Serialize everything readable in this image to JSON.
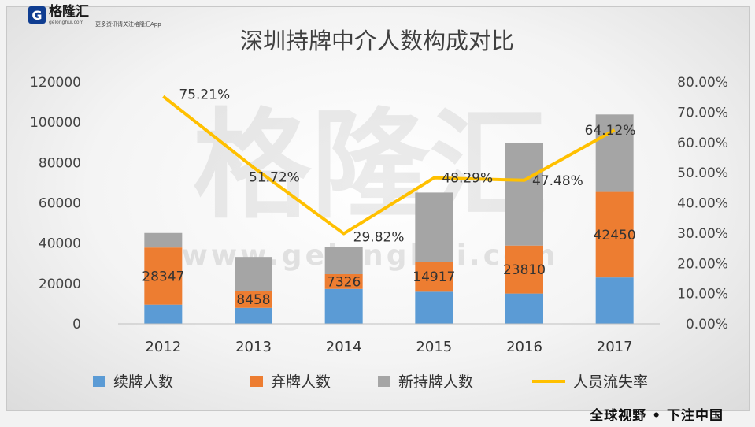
{
  "logo": {
    "mark": "G",
    "name": "格隆汇",
    "url": "gelonghui.com",
    "slogan": "更多资讯请关注格隆汇App"
  },
  "watermark": {
    "text": "格隆汇",
    "url": "www.gelonghui.com"
  },
  "footer_slogan": "全球视野 • 下注中国",
  "colors": {
    "renew": "#5b9bd5",
    "abandon": "#ed7d31",
    "new": "#a5a5a5",
    "rate": "#ffc000"
  },
  "chart_data": {
    "type": "bar",
    "stacked": true,
    "title": "深圳持牌中介人数构成对比",
    "categories": [
      "2012",
      "2013",
      "2014",
      "2015",
      "2016",
      "2017"
    ],
    "ylim": [
      0,
      120000
    ],
    "yticks": [
      "120000",
      "100000",
      "80000",
      "60000",
      "40000",
      "20000",
      "0"
    ],
    "y2lim": [
      0,
      0.8
    ],
    "y2ticks": [
      "80.00%",
      "70.00%",
      "60.00%",
      "50.00%",
      "40.00%",
      "30.00%",
      "20.00%",
      "10.00%",
      "0.00%"
    ],
    "series": [
      {
        "name": "续牌人数",
        "values": [
          9500,
          7900,
          17300,
          15900,
          15000,
          23000
        ]
      },
      {
        "name": "弃牌人数",
        "values": [
          28347,
          8458,
          7326,
          14917,
          23810,
          42450
        ]
      },
      {
        "name": "新持牌人数",
        "values": [
          7200,
          16800,
          13600,
          34300,
          50900,
          38400
        ]
      }
    ],
    "bar_labels": [
      "28347",
      "8458",
      "7326",
      "14917",
      "23810",
      "42450"
    ],
    "line": {
      "name": "人员流失率",
      "values": [
        0.7521,
        0.5172,
        0.2982,
        0.4829,
        0.4748,
        0.6412
      ],
      "labels": [
        "75.21%",
        "51.72%",
        "29.82%",
        "48.29%",
        "47.48%",
        "64.12%"
      ]
    },
    "legend_position": "bottom",
    "grid": false
  }
}
